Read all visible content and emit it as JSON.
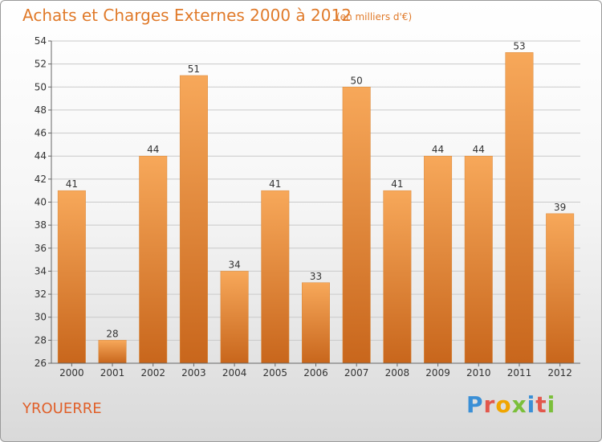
{
  "title": "Achats et Charges Externes 2000 à 2012",
  "unit": "(en milliers d'€)",
  "place": "YROUERRE",
  "logo": {
    "letters": [
      "P",
      "r",
      "o",
      "x",
      "i",
      "t",
      "i"
    ],
    "colors": [
      "#3a8fd6",
      "#e2574c",
      "#f0a500",
      "#7bbf3a",
      "#3a8fd6",
      "#e2574c",
      "#7bbf3a"
    ]
  },
  "colors": {
    "bar_top": "#f7a85a",
    "bar_bottom": "#c8661c",
    "title": "#e07a2a"
  },
  "chart_data": {
    "type": "bar",
    "categories": [
      "2000",
      "2001",
      "2002",
      "2003",
      "2004",
      "2005",
      "2006",
      "2007",
      "2008",
      "2009",
      "2010",
      "2011",
      "2012"
    ],
    "values": [
      41,
      28,
      44,
      51,
      34,
      41,
      33,
      50,
      41,
      44,
      44,
      53,
      39
    ],
    "ylim": [
      26,
      54
    ],
    "yticks": [
      26,
      28,
      30,
      32,
      34,
      36,
      38,
      40,
      42,
      44,
      46,
      48,
      50,
      52,
      54
    ],
    "grid": true,
    "legend": "none"
  }
}
